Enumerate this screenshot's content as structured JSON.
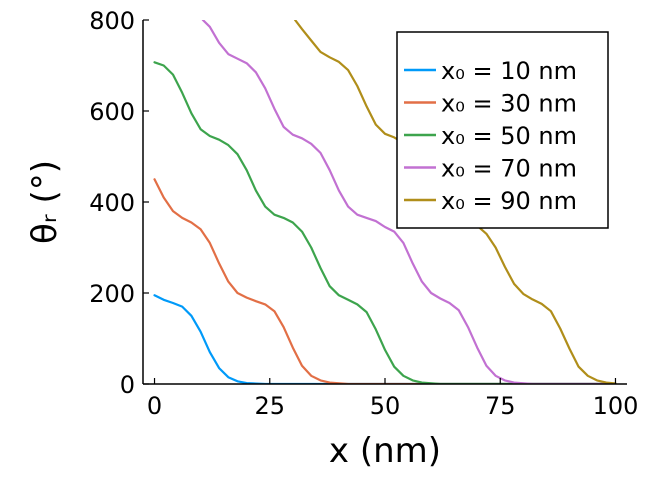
{
  "chart_data": {
    "type": "line",
    "xlabel": "x (nm)",
    "ylabel": "θᵣ (°)",
    "xlim": [
      -2.5,
      102.5
    ],
    "ylim": [
      0,
      800
    ],
    "x_ticks": [
      0,
      25,
      50,
      75,
      100
    ],
    "y_ticks": [
      0,
      200,
      400,
      600,
      800
    ],
    "legend_position": "top-right",
    "series": [
      {
        "name": "x₀ = 10 nm",
        "color": "#009af9",
        "points": [
          [
            0,
            195
          ],
          [
            2,
            185
          ],
          [
            4,
            178
          ],
          [
            6,
            170
          ],
          [
            8,
            150
          ],
          [
            10,
            115
          ],
          [
            12,
            70
          ],
          [
            14,
            35
          ],
          [
            16,
            15
          ],
          [
            18,
            6
          ],
          [
            20,
            2
          ],
          [
            24,
            0
          ],
          [
            100,
            0
          ]
        ]
      },
      {
        "name": "x₀ = 30 nm",
        "color": "#e26f46",
        "points": [
          [
            0,
            450
          ],
          [
            2,
            410
          ],
          [
            4,
            380
          ],
          [
            6,
            365
          ],
          [
            8,
            355
          ],
          [
            10,
            340
          ],
          [
            12,
            310
          ],
          [
            14,
            265
          ],
          [
            16,
            225
          ],
          [
            18,
            200
          ],
          [
            20,
            190
          ],
          [
            22,
            182
          ],
          [
            24,
            175
          ],
          [
            26,
            160
          ],
          [
            28,
            125
          ],
          [
            30,
            80
          ],
          [
            32,
            40
          ],
          [
            34,
            18
          ],
          [
            36,
            8
          ],
          [
            38,
            3
          ],
          [
            42,
            0
          ],
          [
            100,
            0
          ]
        ]
      },
      {
        "name": "x₀ = 50 nm",
        "color": "#3da44d",
        "points": [
          [
            0,
            707
          ],
          [
            2,
            700
          ],
          [
            4,
            680
          ],
          [
            6,
            640
          ],
          [
            8,
            595
          ],
          [
            10,
            560
          ],
          [
            12,
            545
          ],
          [
            14,
            537
          ],
          [
            16,
            525
          ],
          [
            18,
            505
          ],
          [
            20,
            470
          ],
          [
            22,
            425
          ],
          [
            24,
            390
          ],
          [
            26,
            372
          ],
          [
            28,
            365
          ],
          [
            30,
            355
          ],
          [
            32,
            335
          ],
          [
            34,
            300
          ],
          [
            36,
            255
          ],
          [
            38,
            215
          ],
          [
            40,
            195
          ],
          [
            42,
            185
          ],
          [
            44,
            175
          ],
          [
            46,
            158
          ],
          [
            48,
            120
          ],
          [
            50,
            75
          ],
          [
            52,
            38
          ],
          [
            54,
            18
          ],
          [
            56,
            8
          ],
          [
            58,
            3
          ],
          [
            62,
            0
          ],
          [
            100,
            0
          ]
        ]
      },
      {
        "name": "x₀ = 70 nm",
        "color": "#c271d2",
        "points": [
          [
            10.5,
            800
          ],
          [
            12,
            785
          ],
          [
            14,
            750
          ],
          [
            16,
            725
          ],
          [
            18,
            715
          ],
          [
            20,
            705
          ],
          [
            22,
            685
          ],
          [
            24,
            650
          ],
          [
            26,
            605
          ],
          [
            28,
            565
          ],
          [
            30,
            548
          ],
          [
            32,
            540
          ],
          [
            34,
            528
          ],
          [
            36,
            508
          ],
          [
            38,
            470
          ],
          [
            40,
            425
          ],
          [
            42,
            390
          ],
          [
            44,
            372
          ],
          [
            46,
            365
          ],
          [
            48,
            358
          ],
          [
            50,
            345
          ],
          [
            52,
            335
          ],
          [
            54,
            310
          ],
          [
            56,
            265
          ],
          [
            58,
            225
          ],
          [
            60,
            200
          ],
          [
            62,
            188
          ],
          [
            64,
            178
          ],
          [
            66,
            162
          ],
          [
            68,
            125
          ],
          [
            70,
            80
          ],
          [
            72,
            40
          ],
          [
            74,
            18
          ],
          [
            76,
            8
          ],
          [
            78,
            3
          ],
          [
            82,
            0
          ],
          [
            100,
            0
          ]
        ]
      },
      {
        "name": "x₀ = 90 nm",
        "color": "#b08e1a",
        "points": [
          [
            30.5,
            800
          ],
          [
            32,
            780
          ],
          [
            34,
            755
          ],
          [
            36,
            730
          ],
          [
            38,
            718
          ],
          [
            40,
            708
          ],
          [
            42,
            690
          ],
          [
            44,
            655
          ],
          [
            46,
            610
          ],
          [
            48,
            570
          ],
          [
            50,
            550
          ],
          [
            52,
            542
          ],
          [
            54,
            530
          ],
          [
            56,
            510
          ],
          [
            58,
            475
          ],
          [
            60,
            430
          ],
          [
            62,
            392
          ],
          [
            64,
            374
          ],
          [
            66,
            366
          ],
          [
            68,
            358
          ],
          [
            70,
            348
          ],
          [
            72,
            330
          ],
          [
            74,
            300
          ],
          [
            76,
            258
          ],
          [
            78,
            220
          ],
          [
            80,
            198
          ],
          [
            82,
            186
          ],
          [
            84,
            176
          ],
          [
            86,
            160
          ],
          [
            88,
            122
          ],
          [
            90,
            78
          ],
          [
            92,
            38
          ],
          [
            94,
            18
          ],
          [
            96,
            8
          ],
          [
            98,
            3
          ],
          [
            100,
            1
          ]
        ]
      }
    ]
  }
}
